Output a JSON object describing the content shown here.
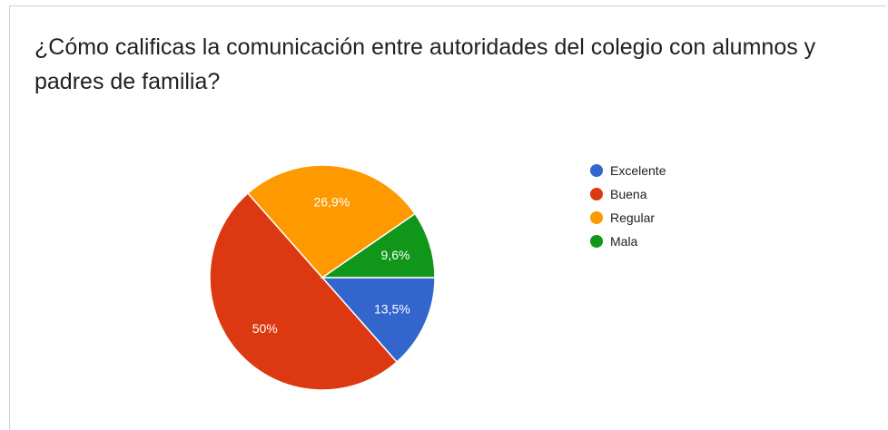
{
  "chart_data": {
    "type": "pie",
    "title": "¿Cómo calificas la comunicación entre autoridades del colegio con alumnos y padres de familia?",
    "slices": [
      {
        "label": "Excelente",
        "value": 13.5,
        "display": "13,5%",
        "color": "#3366cc"
      },
      {
        "label": "Buena",
        "value": 50,
        "display": "50%",
        "color": "#dc3912"
      },
      {
        "label": "Regular",
        "value": 26.9,
        "display": "26,9%",
        "color": "#ff9900"
      },
      {
        "label": "Mala",
        "value": 9.6,
        "display": "9,6%",
        "color": "#109618"
      }
    ],
    "legend_position": "right",
    "start_direction": "clockwise from 3 o'clock"
  }
}
